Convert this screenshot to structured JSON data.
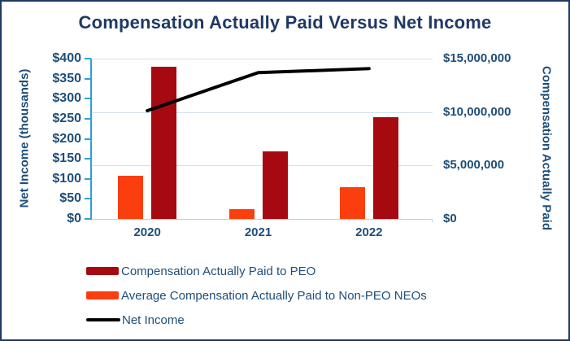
{
  "title": "Compensation Actually Paid Versus Net Income",
  "colors": {
    "title_text": "#1F3864",
    "axis_text": "#1E4E79",
    "axis_line_blue": "#2FA0D8",
    "gridline": "#CFE1F2",
    "peo_bar": "#A6090F",
    "non_peo_bar": "#FB3E0E",
    "net_income_line": "#000000",
    "border": "#1F3864"
  },
  "chart_data": {
    "type": "combo-bar-line",
    "categories": [
      "2020",
      "2021",
      "2022"
    ],
    "bar_series": [
      {
        "name": "Compensation Actually Paid to PEO",
        "axis": "right",
        "color": "#A6090F",
        "slot": 1,
        "values": [
          14250000,
          6300000,
          9500000
        ]
      },
      {
        "name": "Average Compensation Actually Paid to Non-PEO NEOs",
        "axis": "right",
        "color": "#FB3E0E",
        "slot": 0,
        "values": [
          4000000,
          950000,
          3000000
        ]
      }
    ],
    "line_series": [
      {
        "name": "Net Income",
        "axis": "left",
        "color": "#000000",
        "values": [
          270,
          365,
          375
        ]
      }
    ],
    "left_axis": {
      "title": "Net Income (thousands)",
      "min": 0,
      "max": 400,
      "tick_step": 50,
      "tick_labels": [
        "$0",
        "$50",
        "$100",
        "$150",
        "$200",
        "$250",
        "$300",
        "$350",
        "$400"
      ]
    },
    "right_axis": {
      "title": "Compensation Actually Paid",
      "min": 0,
      "max": 15000000,
      "tick_step": 5000000,
      "tick_labels": [
        "$0",
        "$5,000,000",
        "$10,000,000",
        "$15,000,000"
      ]
    },
    "legend": {
      "position": "bottom-left",
      "items": [
        {
          "label": "Compensation Actually Paid to PEO",
          "swatch": "bar",
          "color": "#A6090F"
        },
        {
          "label": "Average Compensation Actually Paid to Non-PEO NEOs",
          "swatch": "bar",
          "color": "#FB3E0E"
        },
        {
          "label": "Net Income",
          "swatch": "line",
          "color": "#000000"
        }
      ]
    },
    "grid": "horizontal light-blue lines at right-axis major ticks"
  }
}
